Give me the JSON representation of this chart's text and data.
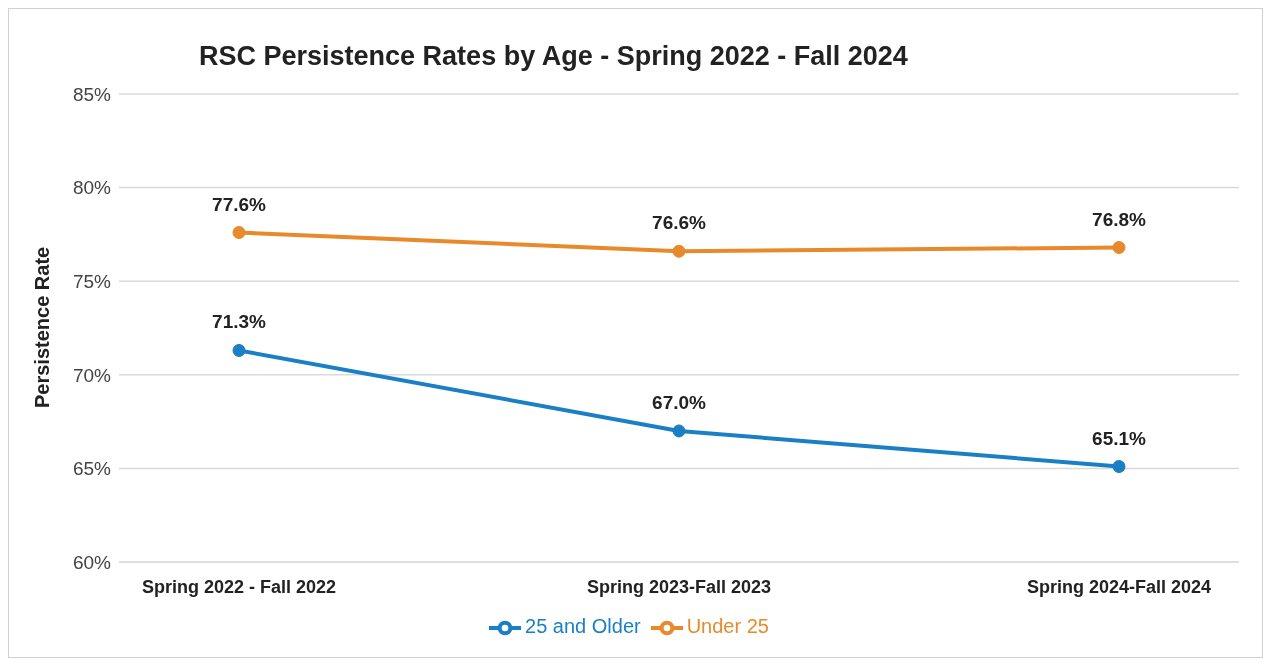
{
  "chart_data": {
    "type": "line",
    "title": "RSC Persistence Rates by Age - Spring 2022 - Fall 2024",
    "ylabel": "Persistence Rate",
    "categories": [
      "Spring 2022 - Fall 2022",
      "Spring 2023-Fall 2023",
      "Spring 2024-Fall 2024"
    ],
    "series": [
      {
        "name": "Under 25",
        "color": "#e8892b",
        "values": [
          77.6,
          76.6,
          76.8
        ],
        "value_labels": [
          "77.6%",
          "76.6%",
          "76.8%"
        ]
      },
      {
        "name": "25 and Older",
        "color": "#1a7fc4",
        "values": [
          71.3,
          67.0,
          65.1
        ],
        "value_labels": [
          "71.3%",
          "67.0%",
          "65.1%"
        ]
      }
    ],
    "ylim": [
      60,
      85
    ],
    "yticks": [
      {
        "value": 60,
        "label": "60%"
      },
      {
        "value": 65,
        "label": "65%"
      },
      {
        "value": 70,
        "label": "70%"
      },
      {
        "value": 75,
        "label": "75%"
      },
      {
        "value": 80,
        "label": "80%"
      },
      {
        "value": 85,
        "label": "85%"
      }
    ],
    "grid": "y",
    "legend": "bottom",
    "marker": "circle",
    "line_style": "solid"
  }
}
